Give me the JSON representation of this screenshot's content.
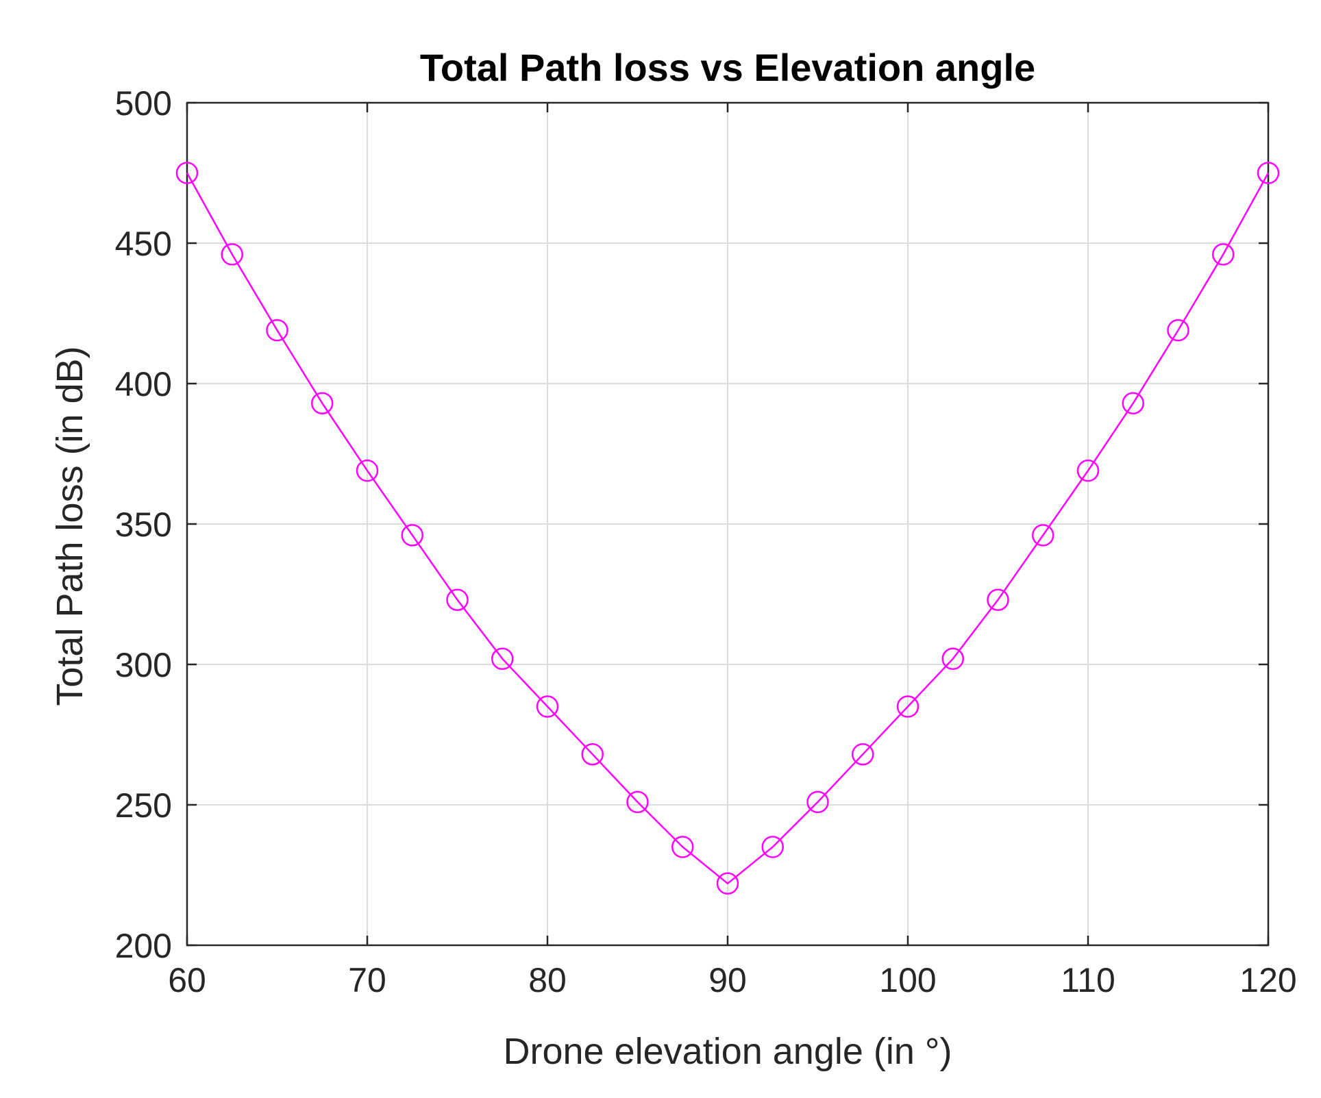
{
  "chart_data": {
    "type": "line",
    "title": "Total Path loss vs Elevation angle",
    "xlabel": "Drone elevation angle (in °)",
    "ylabel": "Total Path loss (in dB)",
    "xlim": [
      60,
      120
    ],
    "ylim": [
      200,
      500
    ],
    "xticks": [
      60,
      70,
      80,
      90,
      100,
      110,
      120
    ],
    "yticks": [
      200,
      250,
      300,
      350,
      400,
      450,
      500
    ],
    "xtick_labels": [
      "60",
      "70",
      "80",
      "90",
      "100",
      "110",
      "120"
    ],
    "ytick_labels": [
      "200",
      "250",
      "300",
      "350",
      "400",
      "450",
      "500"
    ],
    "grid": true,
    "series": [
      {
        "name": "Total Path loss",
        "color": "#ff00ff",
        "marker": "circle",
        "x": [
          60,
          62.5,
          65,
          67.5,
          70,
          72.5,
          75,
          77.5,
          80,
          82.5,
          85,
          87.5,
          90,
          92.5,
          95,
          97.5,
          100,
          102.5,
          105,
          107.5,
          110,
          112.5,
          115,
          117.5,
          120
        ],
        "y": [
          475,
          446,
          419,
          393,
          369,
          346,
          323,
          302,
          285,
          268,
          251,
          235,
          222,
          235,
          251,
          268,
          285,
          302,
          323,
          346,
          369,
          393,
          419,
          446,
          475
        ]
      }
    ]
  }
}
